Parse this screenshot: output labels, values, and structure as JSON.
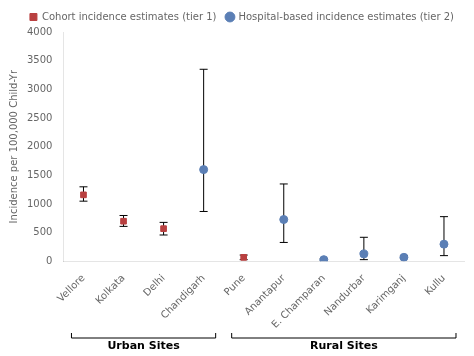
{
  "chart_data": {
    "type": "scatter",
    "categories": [
      "Vellore",
      "Kolkata",
      "Delhi",
      "Chandigarh",
      "Pune",
      "Anantapur",
      "E. Champaran",
      "Nandurbar",
      "Karimganj",
      "Kullu"
    ],
    "ylabel": "Incidence per 100,000 Child-Yr",
    "ylim": [
      0,
      4000
    ],
    "yticks": [
      0,
      500,
      1000,
      1500,
      2000,
      2500,
      3000,
      3500,
      4000
    ],
    "grid": false,
    "legend": "upper right",
    "series": [
      {
        "name": "Cohort incidence estimates (tier 1)",
        "color": "#B94040",
        "marker": "square",
        "values": [
          1160,
          700,
          570,
          null,
          70,
          null,
          null,
          null,
          null,
          null
        ],
        "ci_low": [
          1050,
          610,
          460,
          null,
          30,
          null,
          null,
          null,
          null,
          null
        ],
        "ci_high": [
          1300,
          800,
          680,
          null,
          110,
          null,
          null,
          null,
          null,
          null
        ]
      },
      {
        "name": "Hospital-based incidence estimates (tier 2)",
        "color": "#5B7FB5",
        "marker": "circle",
        "values": [
          null,
          null,
          null,
          1600,
          null,
          730,
          30,
          130,
          70,
          300
        ],
        "ci_low": [
          null,
          null,
          null,
          870,
          null,
          330,
          20,
          30,
          50,
          100
        ],
        "ci_high": [
          null,
          null,
          null,
          3350,
          null,
          1350,
          50,
          420,
          100,
          780
        ]
      }
    ],
    "groups": [
      {
        "label": "Urban Sites",
        "categories": [
          "Vellore",
          "Kolkata",
          "Delhi",
          "Chandigarh"
        ]
      },
      {
        "label": "Rural Sites",
        "categories": [
          "Pune",
          "Anantapur",
          "E. Champaran",
          "Nandurbar",
          "Karimganj",
          "Kullu"
        ]
      }
    ]
  }
}
